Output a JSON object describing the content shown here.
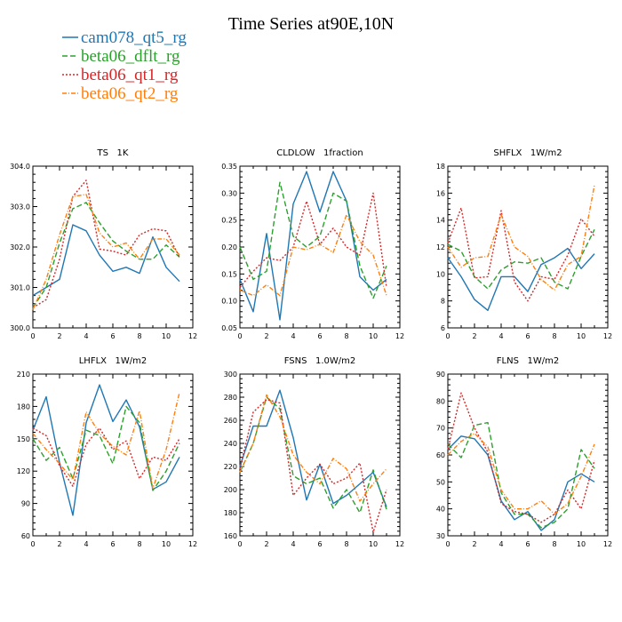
{
  "title": "Time Series at90E,10N",
  "legend": [
    {
      "name": "cam078_qt5_rg",
      "color": "#1f77b4",
      "dash": "solid"
    },
    {
      "name": "beta06_dflt_rg",
      "color": "#2ca02c",
      "dash": "longdash"
    },
    {
      "name": "beta06_qt1_rg",
      "color": "#d62728",
      "dash": "dot"
    },
    {
      "name": "beta06_qt2_rg",
      "color": "#ff7f0e",
      "dash": "dashdot"
    }
  ],
  "chart_data": [
    {
      "type": "line",
      "title": "TS   1K",
      "x": [
        0,
        1,
        2,
        3,
        4,
        5,
        6,
        7,
        8,
        9,
        10,
        11
      ],
      "xlim": [
        0,
        12
      ],
      "xticks": [
        "0",
        "2",
        "4",
        "6",
        "8",
        "10",
        "12"
      ],
      "ylim": [
        300.0,
        304.0
      ],
      "yticks": [
        "300.0",
        "301.0",
        "302.0",
        "303.0",
        "304.0"
      ],
      "series": [
        {
          "name": "cam078_qt5_rg",
          "values": [
            300.8,
            301.0,
            301.2,
            302.55,
            302.4,
            301.8,
            301.4,
            301.5,
            301.35,
            302.25,
            301.5,
            301.15
          ]
        },
        {
          "name": "beta06_dflt_rg",
          "values": [
            300.5,
            301.0,
            302.1,
            302.95,
            303.1,
            302.6,
            302.15,
            301.9,
            301.7,
            301.7,
            302.05,
            301.75
          ]
        },
        {
          "name": "beta06_qt1_rg",
          "values": [
            300.5,
            300.7,
            301.7,
            303.25,
            303.65,
            301.95,
            301.9,
            301.8,
            302.3,
            302.45,
            302.4,
            301.75
          ]
        },
        {
          "name": "beta06_qt2_rg",
          "values": [
            300.45,
            301.2,
            302.3,
            303.25,
            303.3,
            302.35,
            302.0,
            302.1,
            301.7,
            302.2,
            302.2,
            301.8
          ]
        }
      ]
    },
    {
      "type": "line",
      "title": "CLDLOW   1fraction",
      "x": [
        0,
        1,
        2,
        3,
        4,
        5,
        6,
        7,
        8,
        9,
        10,
        11
      ],
      "xlim": [
        0,
        12
      ],
      "xticks": [
        "0",
        "2",
        "4",
        "6",
        "8",
        "10",
        "12"
      ],
      "ylim": [
        0.05,
        0.35
      ],
      "yticks": [
        "0.05",
        "0.10",
        "0.15",
        "0.20",
        "0.25",
        "0.30",
        "0.35"
      ],
      "series": [
        {
          "name": "cam078_qt5_rg",
          "values": [
            0.14,
            0.08,
            0.225,
            0.065,
            0.28,
            0.34,
            0.265,
            0.34,
            0.285,
            0.145,
            0.12,
            0.14
          ]
        },
        {
          "name": "beta06_dflt_rg",
          "values": [
            0.2,
            0.14,
            0.155,
            0.32,
            0.22,
            0.2,
            0.22,
            0.3,
            0.285,
            0.165,
            0.105,
            0.165
          ]
        },
        {
          "name": "beta06_qt1_rg",
          "values": [
            0.125,
            0.155,
            0.18,
            0.175,
            0.2,
            0.285,
            0.205,
            0.235,
            0.2,
            0.185,
            0.3,
            0.125
          ]
        },
        {
          "name": "beta06_qt2_rg",
          "values": [
            0.12,
            0.11,
            0.13,
            0.11,
            0.2,
            0.195,
            0.205,
            0.19,
            0.26,
            0.21,
            0.185,
            0.11
          ]
        }
      ]
    },
    {
      "type": "line",
      "title": "SHFLX   1W/m2",
      "x": [
        0,
        1,
        2,
        3,
        4,
        5,
        6,
        7,
        8,
        9,
        10,
        11
      ],
      "xlim": [
        0,
        12
      ],
      "xticks": [
        "0",
        "2",
        "4",
        "6",
        "8",
        "10",
        "12"
      ],
      "ylim": [
        6,
        18
      ],
      "yticks": [
        "6",
        "8",
        "10",
        "12",
        "14",
        "16",
        "18"
      ],
      "series": [
        {
          "name": "cam078_qt5_rg",
          "values": [
            11.2,
            9.8,
            8.1,
            7.3,
            9.8,
            9.8,
            8.7,
            10.7,
            11.2,
            11.9,
            10.4,
            11.5
          ]
        },
        {
          "name": "beta06_dflt_rg",
          "values": [
            12.2,
            11.7,
            9.8,
            8.9,
            10.3,
            10.9,
            10.8,
            11.2,
            9.4,
            8.9,
            11.3,
            13.3
          ]
        },
        {
          "name": "beta06_qt1_rg",
          "values": [
            12.3,
            14.9,
            9.7,
            9.8,
            14.7,
            9.4,
            8.0,
            9.8,
            9.6,
            11.4,
            14.1,
            12.8
          ]
        },
        {
          "name": "beta06_qt2_rg",
          "values": [
            12.0,
            10.5,
            11.2,
            11.3,
            14.4,
            12.0,
            11.3,
            9.6,
            8.8,
            10.7,
            11.3,
            16.6
          ]
        }
      ]
    },
    {
      "type": "line",
      "title": "LHFLX   1W/m2",
      "x": [
        0,
        1,
        2,
        3,
        4,
        5,
        6,
        7,
        8,
        9,
        10,
        11
      ],
      "xlim": [
        0,
        12
      ],
      "xticks": [
        "0",
        "2",
        "4",
        "6",
        "8",
        "10",
        "12"
      ],
      "ylim": [
        60,
        210
      ],
      "yticks": [
        "60",
        "90",
        "120",
        "150",
        "180",
        "210"
      ],
      "series": [
        {
          "name": "cam078_qt5_rg",
          "values": [
            158,
            189,
            128,
            79,
            165,
            200,
            166,
            186,
            161,
            103,
            110,
            133
          ]
        },
        {
          "name": "beta06_dflt_rg",
          "values": [
            150,
            130,
            142,
            113,
            158,
            153,
            127,
            180,
            165,
            102,
            120,
            146
          ]
        },
        {
          "name": "beta06_qt1_rg",
          "values": [
            160,
            153,
            125,
            106,
            145,
            160,
            140,
            148,
            113,
            133,
            130,
            150
          ]
        },
        {
          "name": "beta06_qt2_rg",
          "values": [
            155,
            140,
            127,
            112,
            175,
            155,
            143,
            135,
            176,
            104,
            140,
            193
          ]
        }
      ]
    },
    {
      "type": "line",
      "title": "FSNS   1.0W/m2",
      "x": [
        0,
        1,
        2,
        3,
        4,
        5,
        6,
        7,
        8,
        9,
        10,
        11
      ],
      "xlim": [
        0,
        12
      ],
      "xticks": [
        "0",
        "2",
        "4",
        "6",
        "8",
        "10",
        "12"
      ],
      "ylim": [
        160,
        300
      ],
      "yticks": [
        "160",
        "180",
        "200",
        "220",
        "240",
        "260",
        "280",
        "300"
      ],
      "series": [
        {
          "name": "cam078_qt5_rg",
          "values": [
            220,
            255,
            255,
            286,
            245,
            191,
            222,
            188,
            195,
            205,
            215,
            185
          ]
        },
        {
          "name": "beta06_dflt_rg",
          "values": [
            215,
            240,
            280,
            270,
            212,
            205,
            210,
            184,
            200,
            180,
            217,
            183
          ]
        },
        {
          "name": "beta06_qt1_rg",
          "values": [
            218,
            267,
            278,
            275,
            195,
            210,
            222,
            205,
            210,
            223,
            163,
            200
          ]
        },
        {
          "name": "beta06_qt2_rg",
          "values": [
            215,
            240,
            282,
            263,
            230,
            215,
            205,
            227,
            218,
            190,
            205,
            218
          ]
        }
      ]
    },
    {
      "type": "line",
      "title": "FLNS   1W/m2",
      "x": [
        0,
        1,
        2,
        3,
        4,
        5,
        6,
        7,
        8,
        9,
        10,
        11
      ],
      "xlim": [
        0,
        12
      ],
      "xticks": [
        "0",
        "2",
        "4",
        "6",
        "8",
        "10",
        "12"
      ],
      "ylim": [
        30,
        90
      ],
      "yticks": [
        "30",
        "40",
        "50",
        "60",
        "70",
        "80",
        "90"
      ],
      "series": [
        {
          "name": "cam078_qt5_rg",
          "values": [
            62,
            67,
            66,
            60,
            43,
            36,
            39,
            32,
            36,
            50,
            53,
            50
          ]
        },
        {
          "name": "beta06_dflt_rg",
          "values": [
            64,
            59,
            71,
            72,
            46,
            38,
            38,
            33,
            35,
            40,
            62,
            55
          ]
        },
        {
          "name": "beta06_qt1_rg",
          "values": [
            62,
            83,
            70,
            61,
            42,
            39,
            38,
            35,
            38,
            47,
            40,
            58
          ]
        },
        {
          "name": "beta06_qt2_rg",
          "values": [
            60,
            65,
            68,
            63,
            47,
            40,
            40,
            43,
            38,
            42,
            52,
            64
          ]
        }
      ]
    }
  ]
}
